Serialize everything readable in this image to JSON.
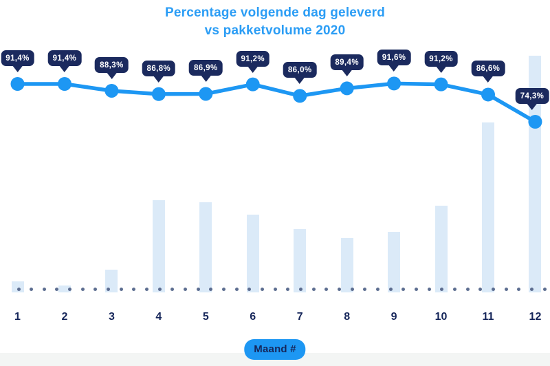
{
  "title": {
    "line1": "Percentage volgende dag geleverd",
    "line2": "vs pakketvolume 2020"
  },
  "xaxis": {
    "title": "Maand #"
  },
  "colors": {
    "title_blue": "#2b9df5",
    "line_blue": "#1d97f3",
    "tooltip_navy": "#1b2a5e",
    "axis_label_navy": "#16265a",
    "bar_fill_light_blue": "#dbeaf8",
    "baseline_dot_gray": "#5c6d90",
    "background": "#ffffff",
    "footer_strip": "#f3f5f4"
  },
  "chart_data": {
    "type": "line",
    "subtype": "combo line + background volume bars",
    "categories": [
      "1",
      "2",
      "3",
      "4",
      "5",
      "6",
      "7",
      "8",
      "9",
      "10",
      "11",
      "12"
    ],
    "xlabel": "Maand #",
    "ylabel": "",
    "legend_position": "none",
    "grid": "dotted baseline only",
    "series": [
      {
        "name": "Percentage volgende dag geleverd",
        "type": "line",
        "unit": "%",
        "values": [
          91.4,
          91.4,
          88.3,
          86.8,
          86.9,
          91.2,
          86.0,
          89.4,
          91.6,
          91.2,
          86.6,
          74.3
        ],
        "labels": [
          "91,4%",
          "91,4%",
          "88,3%",
          "86,8%",
          "86,9%",
          "91,2%",
          "86,0%",
          "89,4%",
          "91,6%",
          "91,2%",
          "86,6%",
          "74,3%"
        ]
      },
      {
        "name": "Pakketvolume 2020",
        "type": "bar",
        "unit": "relatieve index, geschat uit staafhoogte (max = 100, geen datalabels zichtbaar)",
        "values": [
          4.7,
          2.9,
          9.6,
          39.0,
          38.1,
          32.8,
          26.7,
          23.0,
          25.6,
          36.6,
          71.8,
          100.0
        ]
      }
    ]
  }
}
